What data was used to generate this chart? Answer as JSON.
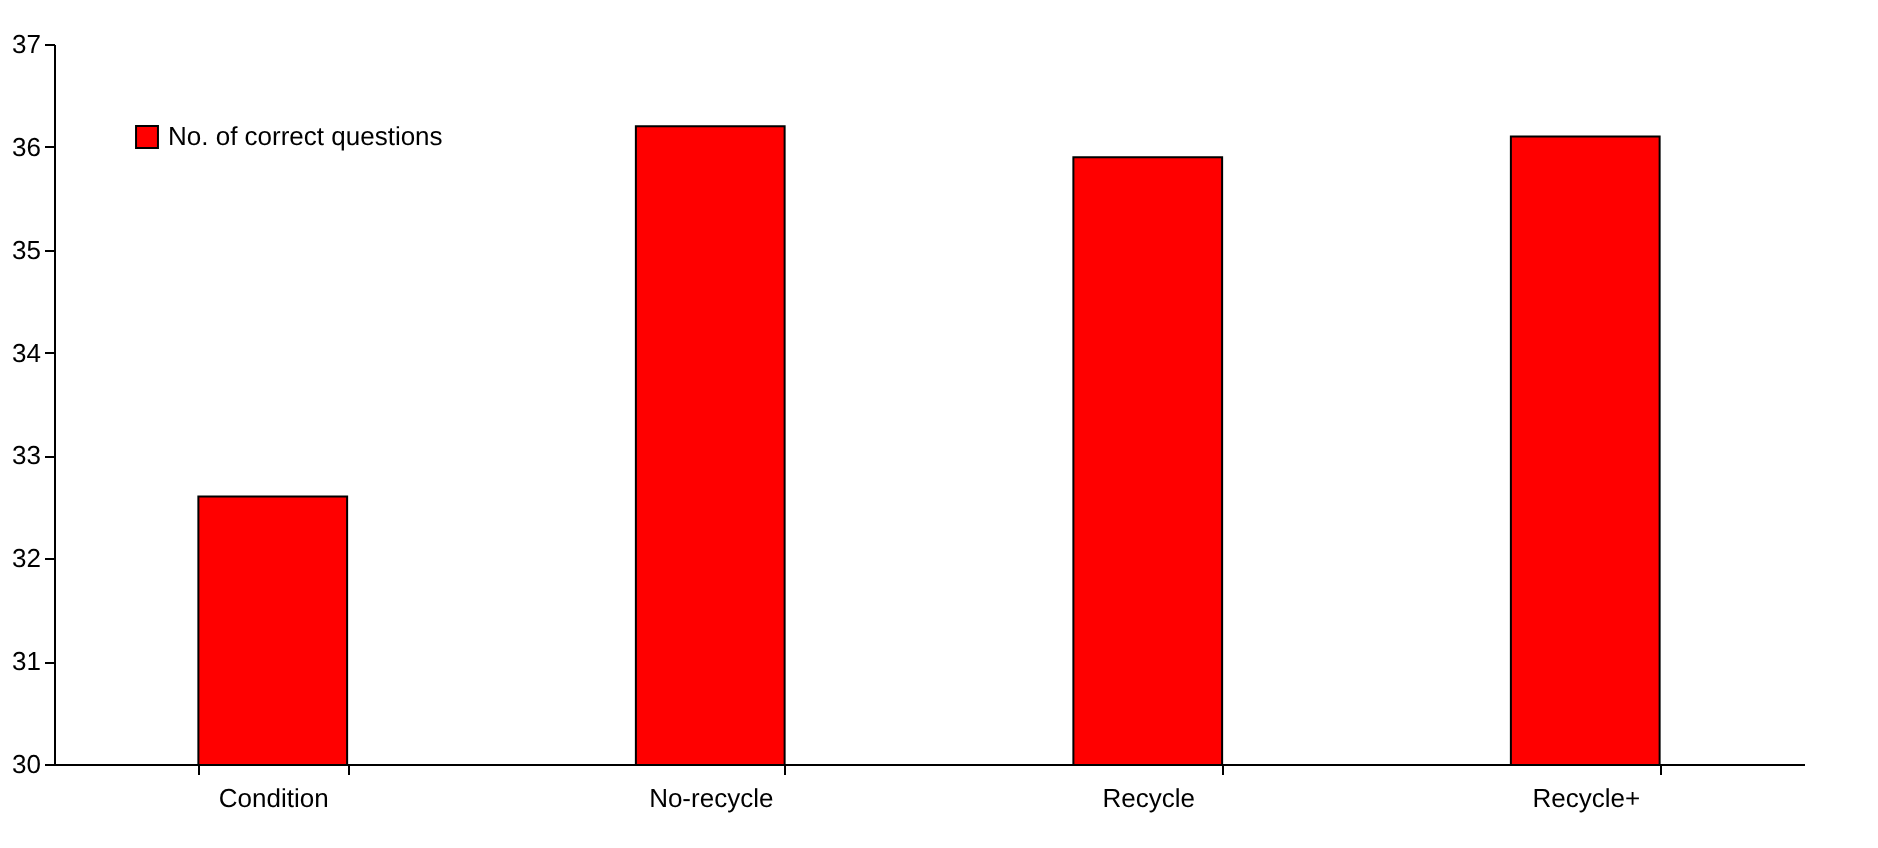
{
  "chart_data": {
    "type": "bar",
    "categories": [
      "Condition",
      "No-recycle",
      "Recycle",
      "Recycle+"
    ],
    "series": [
      {
        "name": "No. of correct questions",
        "color": "#ff0000",
        "values": [
          32.6,
          36.2,
          35.9,
          36.1
        ]
      }
    ],
    "ylim": [
      30,
      37
    ],
    "yticks": [
      30,
      31,
      32,
      33,
      34,
      35,
      36,
      37
    ],
    "grid": false,
    "legend": "top left"
  }
}
